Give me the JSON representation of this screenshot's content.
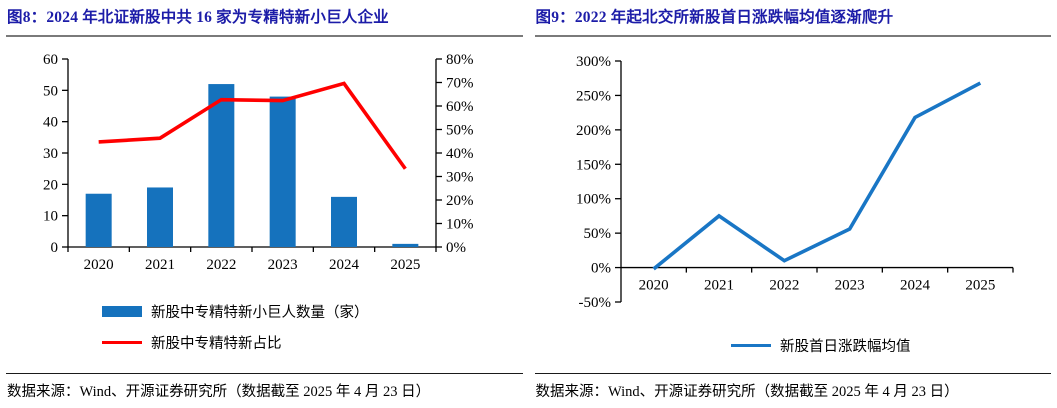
{
  "page": {
    "background": "#ffffff"
  },
  "colors": {
    "title_navy": "#1c1ca8",
    "bar_blue": "#1572bd",
    "line_red": "#ff0000",
    "line_blue": "#1976c5",
    "axis_black": "#000000",
    "title_rule_gray": "#7a7a7a",
    "source_rule_dark": "#1a1a1a"
  },
  "figures": [
    {
      "title": "图8：2024 年北证新股中共 16 家为专精特新小巨人企业",
      "source": "数据来源：Wind、开源证券研究所（数据截至 2025 年 4 月 23 日）",
      "legend": [
        {
          "label": "新股中专精特新小巨人数量（家）",
          "type": "bar",
          "color": "#1572bd"
        },
        {
          "label": "新股中专精特新占比",
          "type": "line",
          "color": "#ff0000"
        }
      ],
      "chart_data": {
        "type": "bar",
        "subtype": "bar+line-dual-axis",
        "categories": [
          "2020",
          "2021",
          "2022",
          "2023",
          "2024",
          "2025"
        ],
        "series": [
          {
            "name": "新股中专精特新小巨人数量（家）",
            "chart": "bar",
            "axis": "left",
            "color": "#1572bd",
            "values": [
              17,
              19,
              52,
              48,
              16,
              1
            ]
          },
          {
            "name": "新股中专精特新占比",
            "chart": "line",
            "axis": "right",
            "color": "#ff0000",
            "unit": "%",
            "values": [
              44.7,
              46.3,
              62.7,
              62.3,
              69.6,
              33.3
            ]
          }
        ],
        "left_axis": {
          "min": 0,
          "max": 60,
          "step": 10,
          "format": "number"
        },
        "right_axis": {
          "min": 0,
          "max": 80,
          "step": 10,
          "format": "percent"
        },
        "grid": false,
        "legend_position": "bottom-left"
      }
    },
    {
      "title": "图9：2022 年起北交所新股首日涨跌幅均值逐渐爬升",
      "source": "数据来源：Wind、开源证券研究所（数据截至 2025 年 4 月 23 日）",
      "legend": [
        {
          "label": "新股首日涨跌幅均值",
          "type": "line",
          "color": "#1976c5"
        }
      ],
      "chart_data": {
        "type": "line",
        "categories": [
          "2020",
          "2021",
          "2022",
          "2023",
          "2024",
          "2025"
        ],
        "series": [
          {
            "name": "新股首日涨跌幅均值",
            "color": "#1976c5",
            "unit": "%",
            "values": [
              -2,
              75,
              10,
              56,
              218,
              268
            ]
          }
        ],
        "y_axis": {
          "min": -50,
          "max": 300,
          "step": 50,
          "format": "percent"
        },
        "grid": false,
        "legend_position": "bottom-center"
      }
    }
  ]
}
